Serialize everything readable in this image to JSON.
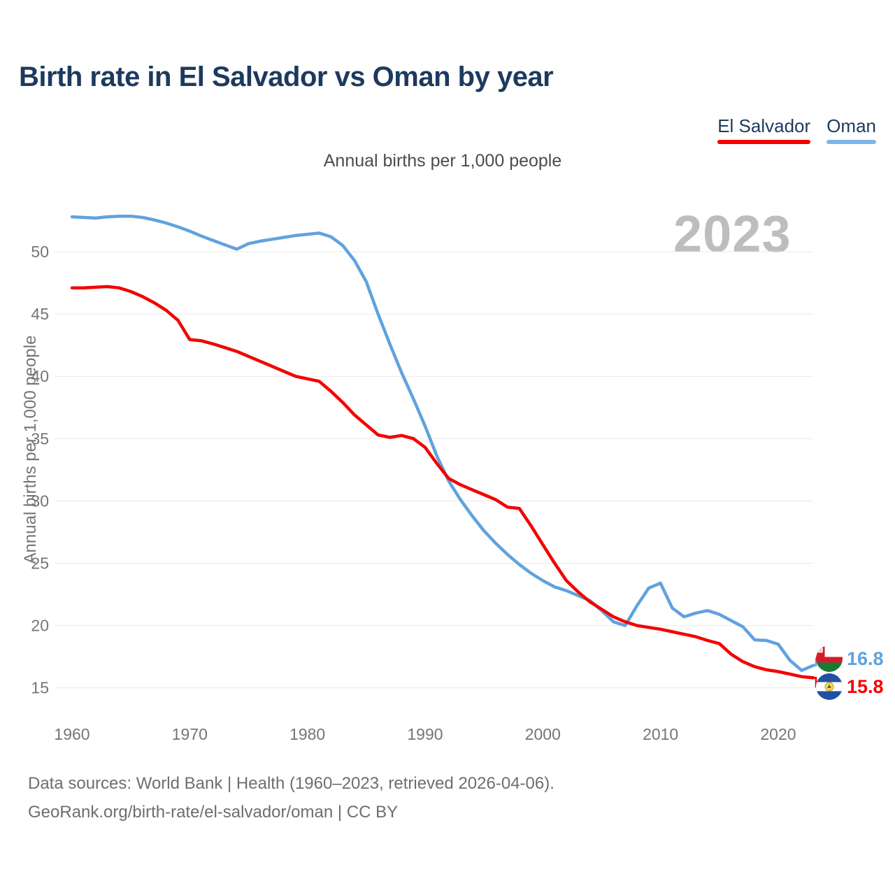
{
  "page": {
    "title": "Birth rate in El Salvador vs Oman by year",
    "subtitle": "Annual births per 1,000 people",
    "watermark": "2023"
  },
  "legend": {
    "items": [
      {
        "label": "El Salvador",
        "color": "#f40000"
      },
      {
        "label": "Oman",
        "color": "#7cb5ea"
      }
    ]
  },
  "y_axis": {
    "title": "Annual births per 1,000 people",
    "ticks": [
      50,
      45,
      40,
      35,
      30,
      25,
      20,
      15
    ]
  },
  "x_axis": {
    "ticks": [
      1960,
      1970,
      1980,
      1990,
      2000,
      2010,
      2020
    ]
  },
  "end_labels": [
    {
      "series": "Oman",
      "value": "16.8",
      "flag_icon": "oman-flag-icon"
    },
    {
      "series": "El Salvador",
      "value": "15.8",
      "flag_icon": "el-salvador-flag-icon"
    }
  ],
  "footer": {
    "line1": "Data sources: World Bank | Health (1960–2023, retrieved 2026-04-06).",
    "line2": "GeoRank.org/birth-rate/el-salvador/oman | CC BY"
  },
  "chart_data": {
    "type": "line",
    "title": "Birth rate in El Salvador vs Oman by year",
    "subtitle": "Annual births per 1,000 people",
    "xlabel": "",
    "ylabel": "Annual births per 1,000 people",
    "xlim": [
      1960,
      2023
    ],
    "ylim": [
      13.5,
      54
    ],
    "grid": "horizontal",
    "legend_position": "top-right",
    "watermark_year": "2023",
    "x": [
      1960,
      1961,
      1962,
      1963,
      1964,
      1965,
      1966,
      1967,
      1968,
      1969,
      1970,
      1971,
      1972,
      1973,
      1974,
      1975,
      1976,
      1977,
      1978,
      1979,
      1980,
      1981,
      1982,
      1983,
      1984,
      1985,
      1986,
      1987,
      1988,
      1989,
      1990,
      1991,
      1992,
      1993,
      1994,
      1995,
      1996,
      1997,
      1998,
      1999,
      2000,
      2001,
      2002,
      2003,
      2004,
      2005,
      2006,
      2007,
      2008,
      2009,
      2010,
      2011,
      2012,
      2013,
      2014,
      2015,
      2016,
      2017,
      2018,
      2019,
      2020,
      2021,
      2022,
      2023
    ],
    "series": [
      {
        "name": "El Salvador",
        "color": "#f40000",
        "end_label": 15.8,
        "values": [
          47.1,
          47.1,
          47.15,
          47.2,
          47.1,
          46.8,
          46.4,
          45.9,
          45.3,
          44.5,
          42.95,
          42.85,
          42.6,
          42.3,
          42.0,
          41.6,
          41.2,
          40.8,
          40.4,
          40.0,
          39.8,
          39.6,
          38.8,
          37.9,
          36.9,
          36.1,
          35.3,
          35.1,
          35.25,
          35.0,
          34.3,
          33.0,
          31.8,
          31.3,
          30.9,
          30.5,
          30.1,
          29.5,
          29.4,
          28.0,
          26.5,
          25.0,
          23.6,
          22.7,
          21.9,
          21.3,
          20.7,
          20.3,
          20.0,
          19.85,
          19.7,
          19.5,
          19.3,
          19.1,
          18.8,
          18.55,
          17.7,
          17.1,
          16.7,
          16.45,
          16.3,
          16.1,
          15.9,
          15.8
        ]
      },
      {
        "name": "Oman",
        "color": "#61a2de",
        "end_label": 16.8,
        "values": [
          52.8,
          52.75,
          52.7,
          52.8,
          52.85,
          52.85,
          52.75,
          52.55,
          52.3,
          52.0,
          51.65,
          51.25,
          50.9,
          50.55,
          50.2,
          50.65,
          50.85,
          51.0,
          51.15,
          51.3,
          51.4,
          51.5,
          51.2,
          50.5,
          49.3,
          47.6,
          45.0,
          42.6,
          40.3,
          38.2,
          36.0,
          33.6,
          31.6,
          30.1,
          28.8,
          27.6,
          26.6,
          25.7,
          24.9,
          24.2,
          23.6,
          23.1,
          22.8,
          22.4,
          22.0,
          21.2,
          20.3,
          20.0,
          21.6,
          23.0,
          23.4,
          21.4,
          20.7,
          21.0,
          21.2,
          20.9,
          20.4,
          19.9,
          18.85,
          18.8,
          18.5,
          17.2,
          16.4,
          16.8
        ]
      }
    ]
  }
}
